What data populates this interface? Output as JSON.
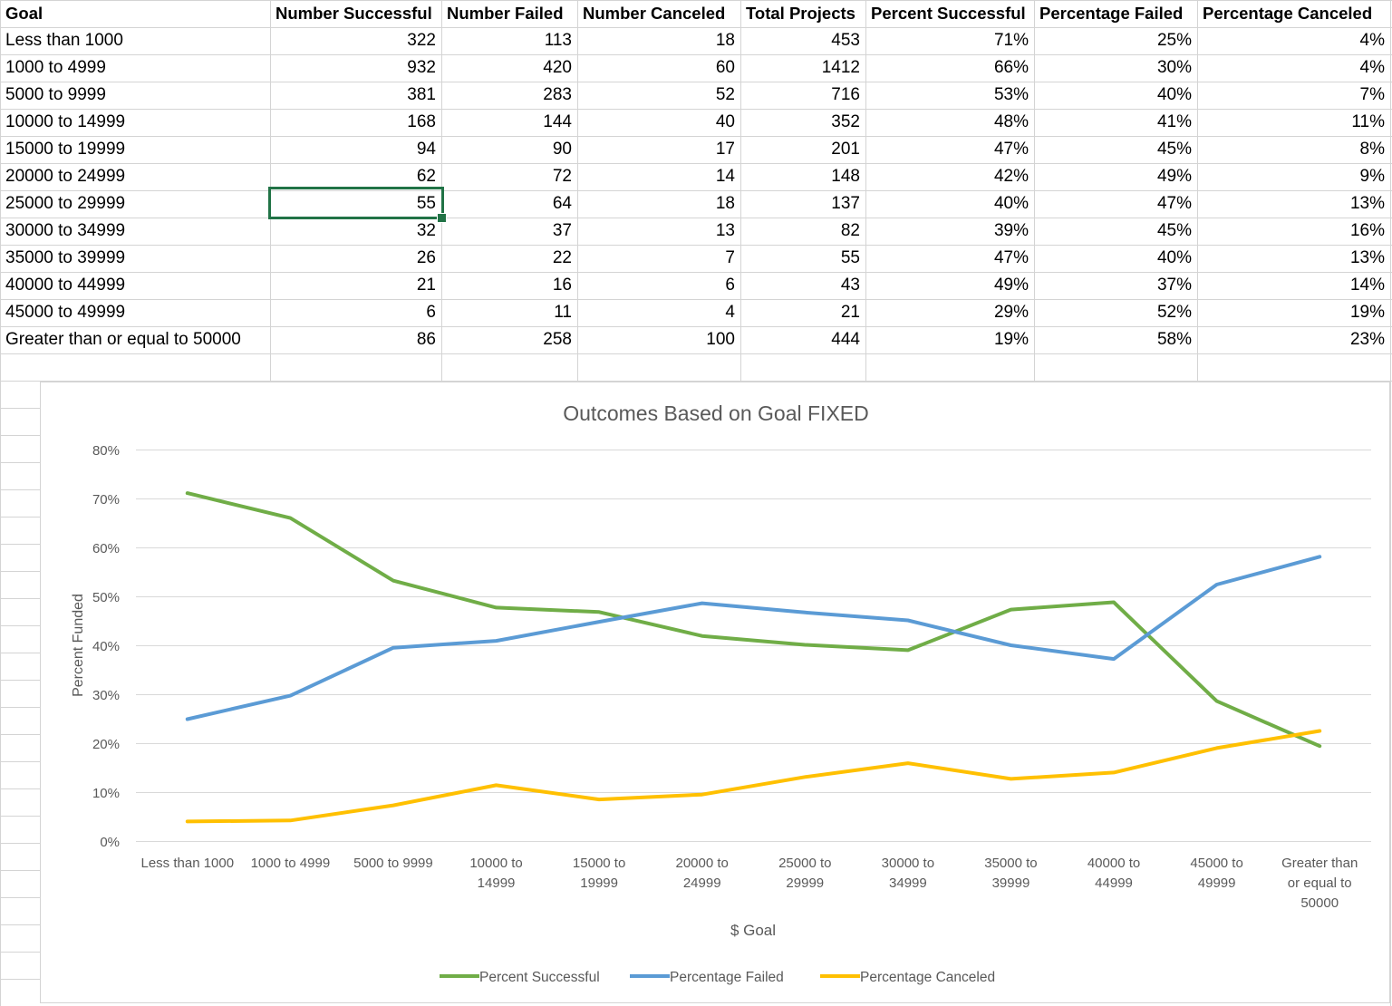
{
  "table": {
    "headers": [
      "Goal",
      "Number Successful",
      "Number Failed",
      "Number Canceled",
      "Total Projects",
      "Percent Successful",
      "Percentage Failed",
      "Percentage Canceled"
    ],
    "rows": [
      [
        "Less than 1000",
        "322",
        "113",
        "18",
        "453",
        "71%",
        "25%",
        "4%"
      ],
      [
        "1000 to 4999",
        "932",
        "420",
        "60",
        "1412",
        "66%",
        "30%",
        "4%"
      ],
      [
        "5000 to 9999",
        "381",
        "283",
        "52",
        "716",
        "53%",
        "40%",
        "7%"
      ],
      [
        "10000 to 14999",
        "168",
        "144",
        "40",
        "352",
        "48%",
        "41%",
        "11%"
      ],
      [
        "15000 to 19999",
        "94",
        "90",
        "17",
        "201",
        "47%",
        "45%",
        "8%"
      ],
      [
        "20000 to 24999",
        "62",
        "72",
        "14",
        "148",
        "42%",
        "49%",
        "9%"
      ],
      [
        "25000 to 29999",
        "55",
        "64",
        "18",
        "137",
        "40%",
        "47%",
        "13%"
      ],
      [
        "30000 to 34999",
        "32",
        "37",
        "13",
        "82",
        "39%",
        "45%",
        "16%"
      ],
      [
        "35000 to 39999",
        "26",
        "22",
        "7",
        "55",
        "47%",
        "40%",
        "13%"
      ],
      [
        "40000 to 44999",
        "21",
        "16",
        "6",
        "43",
        "49%",
        "37%",
        "14%"
      ],
      [
        "45000 to 49999",
        "6",
        "11",
        "4",
        "21",
        "29%",
        "52%",
        "19%"
      ],
      [
        "Greater than or equal to 50000",
        "86",
        "258",
        "100",
        "444",
        "19%",
        "58%",
        "23%"
      ]
    ],
    "selected_cell": {
      "row": 6,
      "col": 1
    }
  },
  "chart_data": {
    "type": "line",
    "title": "Outcomes Based on Goal FIXED",
    "xlabel": "$ Goal",
    "ylabel": "Percent Funded",
    "ylim": [
      0,
      80
    ],
    "yticks": [
      "0%",
      "10%",
      "20%",
      "30%",
      "40%",
      "50%",
      "60%",
      "70%",
      "80%"
    ],
    "grid": true,
    "legend_position": "bottom",
    "categories": [
      [
        "Less than 1000"
      ],
      [
        "1000 to 4999"
      ],
      [
        "5000 to 9999"
      ],
      [
        "10000 to",
        "14999"
      ],
      [
        "15000 to",
        "19999"
      ],
      [
        "20000 to",
        "24999"
      ],
      [
        "25000 to",
        "29999"
      ],
      [
        "30000 to",
        "34999"
      ],
      [
        "35000 to",
        "39999"
      ],
      [
        "40000 to",
        "44999"
      ],
      [
        "45000 to",
        "49999"
      ],
      [
        "Greater than",
        "or equal to",
        "50000"
      ]
    ],
    "series": [
      {
        "name": "Percent Successful",
        "color": "#70ad47",
        "values": [
          71.1,
          66.0,
          53.2,
          47.7,
          46.8,
          41.9,
          40.1,
          39.0,
          47.3,
          48.8,
          28.6,
          19.4
        ]
      },
      {
        "name": "Percentage Failed",
        "color": "#5b9bd5",
        "values": [
          24.9,
          29.7,
          39.5,
          40.9,
          44.8,
          48.6,
          46.7,
          45.1,
          40.0,
          37.2,
          52.4,
          58.1
        ]
      },
      {
        "name": "Percentage Canceled",
        "color": "#ffc000",
        "values": [
          4.0,
          4.2,
          7.3,
          11.4,
          8.5,
          9.5,
          13.1,
          15.9,
          12.7,
          14.0,
          19.0,
          22.5
        ]
      }
    ]
  }
}
